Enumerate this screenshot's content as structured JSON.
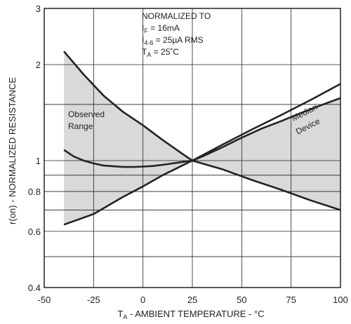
{
  "chart_data": {
    "type": "line",
    "xlabel": {
      "main": "T",
      "sub": "A",
      "rest": " - AMBIENT TEMPERATURE - °C"
    },
    "ylabel": "r(on) - NORMALIZED RESISTANCE",
    "xlim": [
      -50,
      100
    ],
    "ylim": [
      0.4,
      3
    ],
    "y_scale": "log",
    "grid": true,
    "x_ticks": [
      -50,
      -25,
      0,
      25,
      50,
      75,
      100
    ],
    "x_tick_labels": [
      "-50",
      "-25",
      "0",
      "25",
      "50",
      "75",
      "100"
    ],
    "y_ticks": [
      0.4,
      0.6,
      0.8,
      1,
      2,
      3
    ],
    "y_tick_labels": [
      "0.4",
      "0.6",
      "0.8",
      "1",
      "2",
      "3"
    ],
    "y_gridlines": [
      0.4,
      0.5,
      0.6,
      0.7,
      0.8,
      0.9,
      1,
      1.5,
      2,
      3
    ],
    "normalization_note": {
      "heading": "NORMALIZED TO",
      "lines": [
        {
          "main": "I",
          "sub": "F",
          "rest": " = 16mA"
        },
        {
          "main": "I",
          "sub": "4-6",
          "rest": " = 25µA RMS"
        },
        {
          "main": "T",
          "sub": "A",
          "rest": " = 25˚C"
        }
      ]
    },
    "annotations": {
      "observed_range": [
        "Observed",
        "Range"
      ],
      "median_device": [
        "Median",
        "Device"
      ]
    },
    "series": [
      {
        "role": "range-upper",
        "x": [
          -40,
          -30,
          -20,
          -10,
          0,
          10,
          20,
          25,
          30,
          40,
          50,
          60,
          70,
          80,
          90,
          100
        ],
        "y": [
          2.2,
          1.86,
          1.6,
          1.42,
          1.29,
          1.16,
          1.05,
          1.0,
          1.03,
          1.1,
          1.18,
          1.26,
          1.33,
          1.41,
          1.49,
          1.57
        ]
      },
      {
        "role": "range-lower",
        "x": [
          -40,
          -25,
          -10,
          0,
          10,
          25,
          40,
          55,
          70,
          85,
          100
        ],
        "y": [
          0.63,
          0.68,
          0.77,
          0.83,
          0.9,
          1.0,
          0.94,
          0.87,
          0.81,
          0.75,
          0.7
        ]
      },
      {
        "role": "median",
        "x": [
          -40,
          -35,
          -30,
          -25,
          -20,
          -15,
          -10,
          -5,
          0,
          5,
          10,
          15,
          20,
          25
        ],
        "y": [
          1.08,
          1.03,
          1.0,
          0.98,
          0.965,
          0.96,
          0.955,
          0.955,
          0.958,
          0.962,
          0.97,
          0.98,
          0.99,
          1.0
        ]
      },
      {
        "role": "range-line-rising",
        "x": [
          -40,
          -25,
          -10,
          0,
          10,
          25,
          40,
          55,
          70,
          85,
          100
        ],
        "y": [
          0.63,
          0.68,
          0.77,
          0.83,
          0.9,
          1.0,
          1.12,
          1.25,
          1.39,
          1.55,
          1.74
        ]
      }
    ]
  },
  "colors": {
    "fill": "#d9d9d9",
    "line": "#222222",
    "grid": "#222222",
    "bg": "#ffffff"
  }
}
